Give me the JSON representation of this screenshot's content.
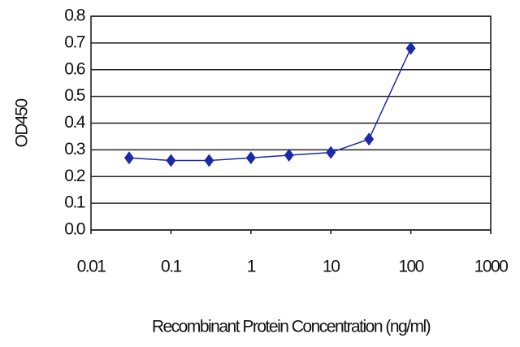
{
  "chart_data": {
    "type": "line",
    "xlabel": "Recombinant Protein Concentration (ng/ml)",
    "ylabel": "OD450",
    "x": [
      0.03,
      0.1,
      0.3,
      1,
      3,
      10,
      30,
      100
    ],
    "values": [
      0.27,
      0.26,
      0.26,
      0.27,
      0.28,
      0.29,
      0.34,
      0.68
    ],
    "color": "#1c2aa8",
    "xscale": "log",
    "xlim": [
      0.01,
      1000
    ],
    "xticks": [
      0.01,
      0.1,
      1,
      10,
      100,
      1000
    ],
    "ylim": [
      0,
      0.8
    ],
    "yticks": [
      {
        "value": 0,
        "label": "0.0"
      },
      0.1,
      0.2,
      0.3,
      0.4,
      0.5,
      0.6,
      0.7,
      0.8
    ],
    "grid": true
  }
}
